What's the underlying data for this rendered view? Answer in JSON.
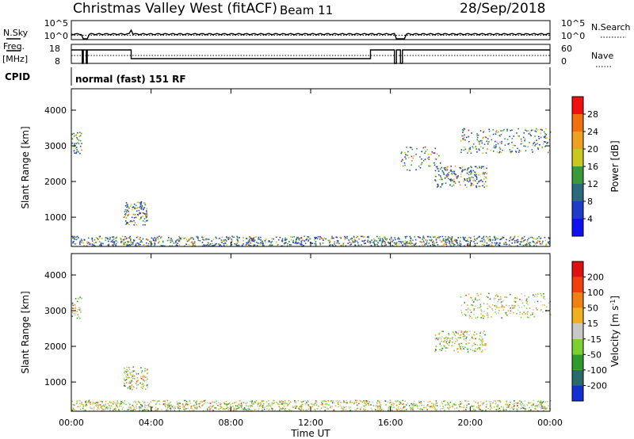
{
  "header": {
    "site_title": "Christmas Valley West (fitACF)",
    "beam": "Beam 11",
    "date": "28/Sep/2018"
  },
  "top_panels": {
    "nsky_label": "N.Sky",
    "nsky_ticks": [
      "10^5",
      "10^0"
    ],
    "nsearch_label": "N.Search",
    "nsearch_ticks": [
      "10^5",
      "10^0"
    ],
    "freq_label_line1": "Freq.",
    "freq_label_line2": "[MHz]",
    "freq_ticks": [
      "18",
      "8"
    ],
    "nave_label": "Nave",
    "nave_ticks": [
      "60",
      "0"
    ],
    "cpid_label": "CPID",
    "cpid_value": "normal (fast) 151 RF"
  },
  "axes": {
    "ylabel": "Slant Range [km]",
    "xlabel": "Time UT",
    "x_ticks": [
      "00:00",
      "04:00",
      "08:00",
      "12:00",
      "16:00",
      "20:00",
      "00:00"
    ],
    "y_ticks": [
      "1000",
      "2000",
      "3000",
      "4000"
    ]
  },
  "power_colorbar": {
    "label": "Power [dB]",
    "ticks": [
      "4",
      "8",
      "12",
      "16",
      "20",
      "24",
      "28"
    ],
    "colors": [
      "#1010f0",
      "#1e3cc8",
      "#2a6a7a",
      "#3a9a3a",
      "#c8c820",
      "#f0a020",
      "#f07010",
      "#f01010"
    ]
  },
  "velocity_colorbar": {
    "label_main": "Velocity [m s",
    "label_sup": "-1",
    "label_end": "]",
    "ticks": [
      "200",
      "100",
      "50",
      "15",
      "-15",
      "-50",
      "-100",
      "-200"
    ],
    "colors": [
      "#1530d0",
      "#2a6a6a",
      "#2e9a2e",
      "#7cd030",
      "#c8c8c8",
      "#f0b020",
      "#f08010",
      "#f04010",
      "#e01010"
    ]
  },
  "chart_data": [
    {
      "type": "heatmap",
      "name": "power",
      "x_range_hours": [
        0,
        24
      ],
      "y_range_km": [
        180,
        4600
      ],
      "blobs": [
        {
          "t0": 0.0,
          "t1": 24.0,
          "r0": 200,
          "r1": 480,
          "color": "mixed-power",
          "density": 0.85
        },
        {
          "t0": 2.6,
          "t1": 3.8,
          "r0": 800,
          "r1": 1450,
          "color": "mixed-power",
          "density": 0.8
        },
        {
          "t0": 0.0,
          "t1": 0.5,
          "r0": 2800,
          "r1": 3400,
          "color": "mixed-power",
          "density": 0.7
        },
        {
          "t0": 18.2,
          "t1": 20.8,
          "r0": 1850,
          "r1": 2450,
          "color": "mixed-power",
          "density": 0.65
        },
        {
          "t0": 19.5,
          "t1": 24.0,
          "r0": 2800,
          "r1": 3500,
          "color": "mixed-power",
          "density": 0.35
        },
        {
          "t0": 16.5,
          "t1": 18.5,
          "r0": 2300,
          "r1": 3000,
          "color": "mixed-power",
          "density": 0.25
        }
      ]
    },
    {
      "type": "heatmap",
      "name": "velocity",
      "x_range_hours": [
        0,
        24
      ],
      "y_range_km": [
        180,
        4600
      ],
      "blobs": [
        {
          "t0": 0.0,
          "t1": 24.0,
          "r0": 200,
          "r1": 500,
          "color": "mixed-velocity",
          "density": 0.85
        },
        {
          "t0": 2.6,
          "t1": 3.8,
          "r0": 800,
          "r1": 1450,
          "color": "mixed-velocity",
          "density": 0.8
        },
        {
          "t0": 0.0,
          "t1": 0.5,
          "r0": 2800,
          "r1": 3400,
          "color": "mixed-velocity",
          "density": 0.6
        },
        {
          "t0": 18.2,
          "t1": 20.8,
          "r0": 1850,
          "r1": 2450,
          "color": "mixed-velocity",
          "density": 0.6
        },
        {
          "t0": 19.5,
          "t1": 24.0,
          "r0": 2800,
          "r1": 3500,
          "color": "mixed-velocity",
          "density": 0.35
        }
      ]
    }
  ]
}
